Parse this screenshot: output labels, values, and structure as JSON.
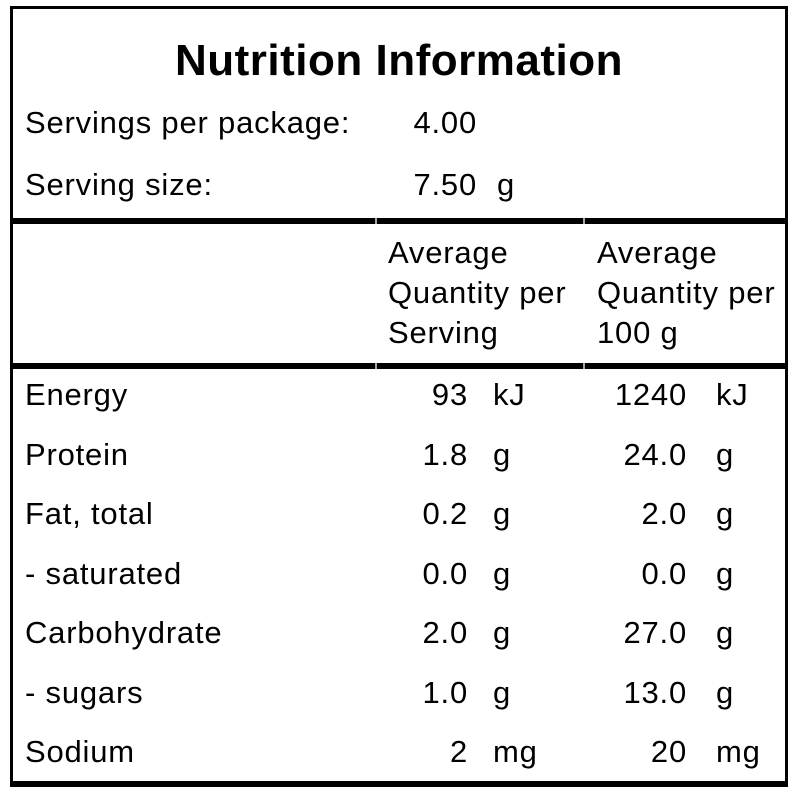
{
  "title": "Nutrition Information",
  "serving_info": {
    "rows": [
      {
        "label": "Servings per package:",
        "value": "4.00",
        "unit": ""
      },
      {
        "label": "Serving size:",
        "value": "7.50",
        "unit": "g"
      }
    ]
  },
  "table": {
    "column_headers": {
      "per_serving": "Average\nQuantity per\nServing",
      "per_100g": "Average\nQuantity per\n100 g"
    },
    "rows": [
      {
        "label": "Energy",
        "per_serving": "93",
        "per_serving_unit": "kJ",
        "per_100g": "1240",
        "per_100g_unit": "kJ"
      },
      {
        "label": "Protein",
        "per_serving": "1.8",
        "per_serving_unit": "g",
        "per_100g": "24.0",
        "per_100g_unit": "g"
      },
      {
        "label": "Fat, total",
        "per_serving": "0.2",
        "per_serving_unit": "g",
        "per_100g": "2.0",
        "per_100g_unit": "g"
      },
      {
        "label": "- saturated",
        "per_serving": "0.0",
        "per_serving_unit": "g",
        "per_100g": "0.0",
        "per_100g_unit": "g"
      },
      {
        "label": "Carbohydrate",
        "per_serving": "2.0",
        "per_serving_unit": "g",
        "per_100g": "27.0",
        "per_100g_unit": "g"
      },
      {
        "label": "- sugars",
        "per_serving": "1.0",
        "per_serving_unit": "g",
        "per_100g": "13.0",
        "per_100g_unit": "g"
      },
      {
        "label": "Sodium",
        "per_serving": "2",
        "per_serving_unit": "mg",
        "per_100g": "20",
        "per_100g_unit": "mg"
      }
    ]
  },
  "colors": {
    "background": "#ffffff",
    "text": "#000000",
    "border": "#000000"
  }
}
